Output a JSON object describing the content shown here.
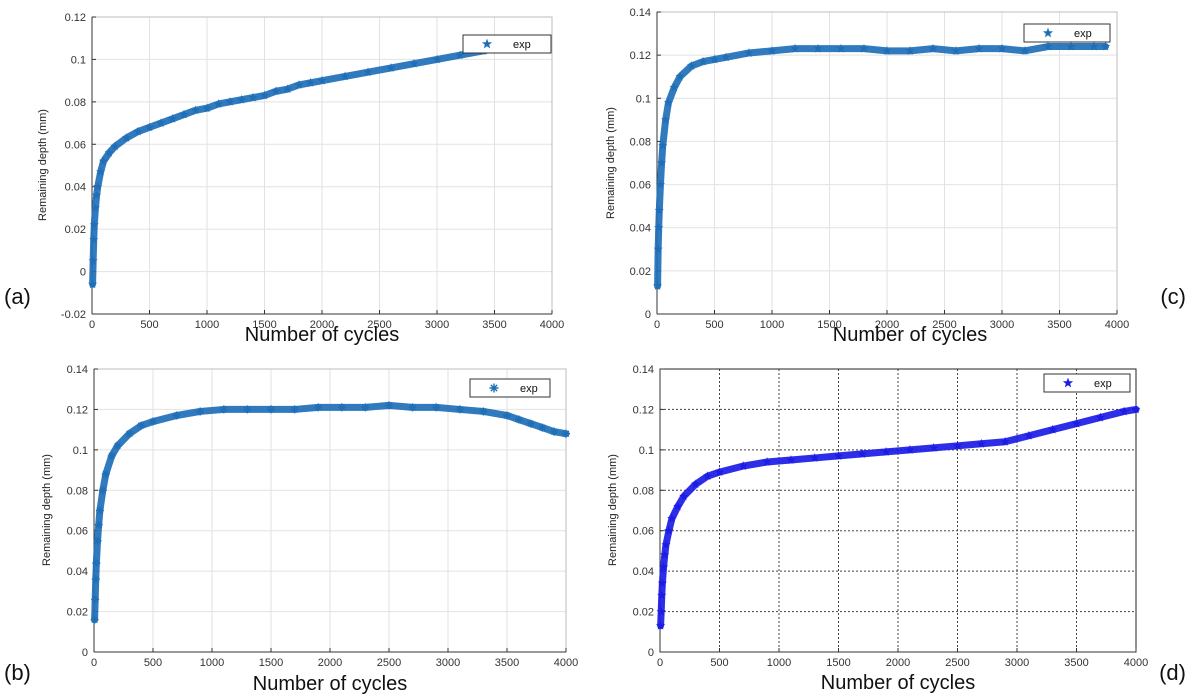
{
  "chart_data": [
    {
      "panel": "(a)",
      "type": "scatter",
      "xlabel": "Number of cycles",
      "ylabel": "Remaining depth (mm)",
      "xlim": [
        0,
        4000
      ],
      "ylim": [
        -0.02,
        0.12
      ],
      "xticks": [
        0,
        500,
        1000,
        1500,
        2000,
        2500,
        3000,
        3500,
        4000
      ],
      "yticks": [
        -0.02,
        0,
        0.02,
        0.04,
        0.06,
        0.08,
        0.1,
        0.12
      ],
      "ytick_labels": [
        "-0.02",
        "0",
        "0.02",
        "0.04",
        "0.06",
        "0.08",
        "0.1",
        "0.12"
      ],
      "grid": "solid-light",
      "legend_position": "top-right",
      "marker": "star",
      "color": "#1f6fb8",
      "series": [
        {
          "name": "exp",
          "x": [
            5,
            10,
            15,
            20,
            30,
            40,
            50,
            75,
            100,
            150,
            200,
            300,
            400,
            500,
            600,
            700,
            800,
            900,
            1000,
            1100,
            1200,
            1300,
            1400,
            1500,
            1600,
            1700,
            1800,
            1900,
            2000,
            2200,
            2400,
            2600,
            2800,
            3000,
            3200,
            3400,
            3600,
            3800,
            3950
          ],
          "y": [
            -0.006,
            0.005,
            0.015,
            0.022,
            0.03,
            0.036,
            0.04,
            0.047,
            0.052,
            0.056,
            0.059,
            0.063,
            0.066,
            0.068,
            0.07,
            0.072,
            0.074,
            0.076,
            0.077,
            0.079,
            0.08,
            0.081,
            0.082,
            0.083,
            0.085,
            0.086,
            0.088,
            0.089,
            0.09,
            0.092,
            0.094,
            0.096,
            0.098,
            0.1,
            0.102,
            0.104,
            0.106,
            0.107,
            0.107
          ]
        }
      ]
    },
    {
      "panel": "(c)",
      "type": "scatter",
      "xlabel": "Number of cycles",
      "ylabel": "Remaining depth (mm)",
      "xlim": [
        0,
        4000
      ],
      "ylim": [
        0,
        0.14
      ],
      "xticks": [
        0,
        500,
        1000,
        1500,
        2000,
        2500,
        3000,
        3500,
        4000
      ],
      "yticks": [
        0,
        0.02,
        0.04,
        0.06,
        0.08,
        0.1,
        0.12,
        0.14
      ],
      "ytick_labels": [
        "0",
        "0.02",
        "0.04",
        "0.06",
        "0.08",
        "0.1",
        "0.12",
        "0.14"
      ],
      "grid": "solid-light",
      "legend_position": "top-right",
      "marker": "star",
      "color": "#1f6fb8",
      "series": [
        {
          "name": "exp",
          "x": [
            5,
            10,
            15,
            20,
            30,
            40,
            50,
            75,
            100,
            150,
            200,
            300,
            400,
            500,
            600,
            800,
            1000,
            1200,
            1400,
            1600,
            1800,
            2000,
            2200,
            2400,
            2600,
            2800,
            3000,
            3200,
            3400,
            3600,
            3800,
            3900
          ],
          "y": [
            0.013,
            0.03,
            0.04,
            0.048,
            0.06,
            0.07,
            0.078,
            0.09,
            0.098,
            0.105,
            0.11,
            0.115,
            0.117,
            0.118,
            0.119,
            0.121,
            0.122,
            0.123,
            0.123,
            0.123,
            0.123,
            0.122,
            0.122,
            0.123,
            0.122,
            0.123,
            0.123,
            0.122,
            0.124,
            0.124,
            0.124,
            0.124
          ]
        }
      ]
    },
    {
      "panel": "(b)",
      "type": "scatter",
      "xlabel": "Number of cycles",
      "ylabel": "Remaining depth (mm)",
      "xlim": [
        0,
        4000
      ],
      "ylim": [
        0,
        0.14
      ],
      "xticks": [
        0,
        500,
        1000,
        1500,
        2000,
        2500,
        3000,
        3500,
        4000
      ],
      "yticks": [
        0,
        0.02,
        0.04,
        0.06,
        0.08,
        0.1,
        0.12,
        0.14
      ],
      "ytick_labels": [
        "0",
        "0.02",
        "0.04",
        "0.06",
        "0.08",
        "0.1",
        "0.12",
        "0.14"
      ],
      "grid": "solid-light",
      "legend_position": "top-right",
      "marker": "asterisk",
      "color": "#1f6fb8",
      "series": [
        {
          "name": "exp",
          "x": [
            5,
            10,
            15,
            20,
            30,
            40,
            50,
            75,
            100,
            150,
            200,
            300,
            400,
            500,
            700,
            900,
            1100,
            1300,
            1500,
            1700,
            1900,
            2100,
            2300,
            2500,
            2700,
            2900,
            3100,
            3300,
            3500,
            3600,
            3700,
            3800,
            3900,
            4000
          ],
          "y": [
            0.016,
            0.026,
            0.036,
            0.044,
            0.055,
            0.063,
            0.07,
            0.08,
            0.088,
            0.097,
            0.102,
            0.108,
            0.112,
            0.114,
            0.117,
            0.119,
            0.12,
            0.12,
            0.12,
            0.12,
            0.121,
            0.121,
            0.121,
            0.122,
            0.121,
            0.121,
            0.12,
            0.119,
            0.117,
            0.115,
            0.113,
            0.111,
            0.109,
            0.108
          ]
        }
      ]
    },
    {
      "panel": "(d)",
      "type": "scatter",
      "xlabel": "Number of cycles",
      "ylabel": "Remaining depth (mm)",
      "xlim": [
        0,
        4000
      ],
      "ylim": [
        0,
        0.14
      ],
      "xticks": [
        0,
        500,
        1000,
        1500,
        2000,
        2500,
        3000,
        3500,
        4000
      ],
      "yticks": [
        0,
        0.02,
        0.04,
        0.06,
        0.08,
        0.1,
        0.12,
        0.14
      ],
      "ytick_labels": [
        "0",
        "0.02",
        "0.04",
        "0.06",
        "0.08",
        "0.1",
        "0.12",
        "0.14"
      ],
      "grid": "dotted-dark",
      "legend_position": "top-right",
      "marker": "star",
      "color": "#1c1ce6",
      "series": [
        {
          "name": "exp",
          "x": [
            5,
            10,
            15,
            20,
            30,
            40,
            50,
            75,
            100,
            150,
            200,
            300,
            400,
            500,
            700,
            900,
            1100,
            1300,
            1500,
            1700,
            1900,
            2100,
            2300,
            2500,
            2700,
            2900,
            3100,
            3300,
            3500,
            3700,
            3900,
            4000
          ],
          "y": [
            0.013,
            0.02,
            0.028,
            0.034,
            0.042,
            0.048,
            0.053,
            0.06,
            0.066,
            0.072,
            0.077,
            0.083,
            0.087,
            0.089,
            0.092,
            0.094,
            0.095,
            0.096,
            0.097,
            0.098,
            0.099,
            0.1,
            0.101,
            0.102,
            0.103,
            0.104,
            0.107,
            0.11,
            0.113,
            0.116,
            0.119,
            0.12
          ]
        }
      ]
    }
  ]
}
